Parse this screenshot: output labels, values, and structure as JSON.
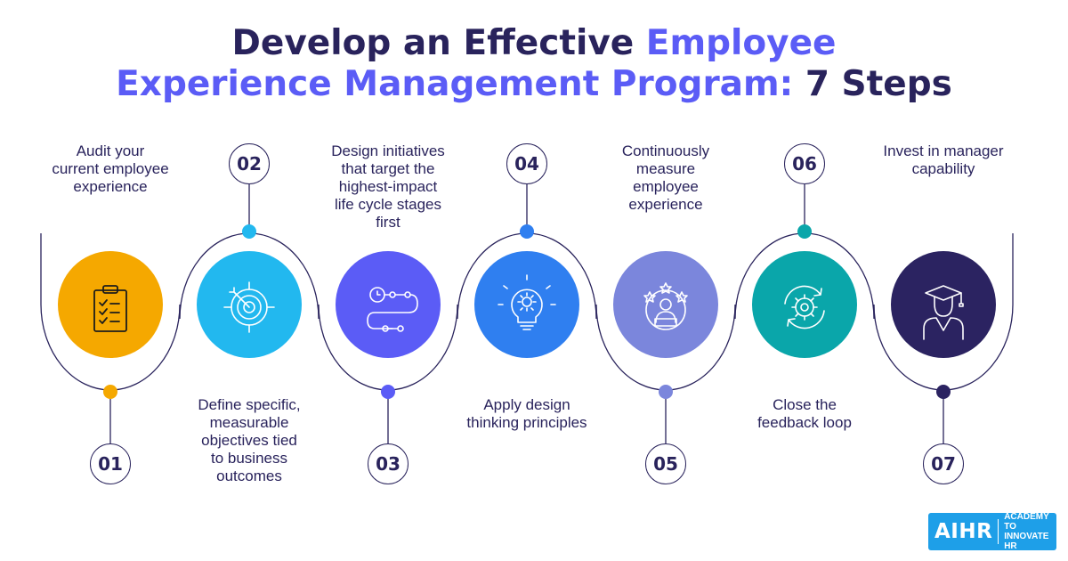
{
  "title": {
    "part1": "Develop an Effective ",
    "part2": "Employee",
    "part3": "Experience Management Program: ",
    "part4": "7 Steps"
  },
  "steps": [
    {
      "number": "01",
      "lines": [
        "Audit your",
        "current employee",
        "experience"
      ],
      "icon": "clipboard-checklist-icon",
      "color": "#f5a800"
    },
    {
      "number": "02",
      "lines": [
        "Define specific,",
        "measurable",
        "objectives tied",
        "to business",
        "outcomes"
      ],
      "icon": "target-icon",
      "color": "#22b8ef"
    },
    {
      "number": "03",
      "lines": [
        "Design initiatives",
        "that target the",
        "highest-impact",
        "life cycle stages",
        "first"
      ],
      "icon": "journey-path-icon",
      "color": "#5b5cf6"
    },
    {
      "number": "04",
      "lines": [
        "Apply design",
        "thinking principles"
      ],
      "icon": "lightbulb-gear-icon",
      "color": "#2f7ff0"
    },
    {
      "number": "05",
      "lines": [
        "Continuously",
        "measure",
        "employee",
        "experience"
      ],
      "icon": "employee-rating-icon",
      "color": "#7b86dc"
    },
    {
      "number": "06",
      "lines": [
        "Close the",
        "feedback loop"
      ],
      "icon": "feedback-cycle-icon",
      "color": "#0aa6aa"
    },
    {
      "number": "07",
      "lines": [
        "Invest in manager",
        "capability"
      ],
      "icon": "graduate-icon",
      "color": "#2b2361"
    }
  ],
  "logo": {
    "mark": "AIHR",
    "line1": "ACADEMY TO",
    "line2": "INNOVATE HR"
  },
  "colors": {
    "navy": "#29235c",
    "blue": "#5b5cf6"
  }
}
